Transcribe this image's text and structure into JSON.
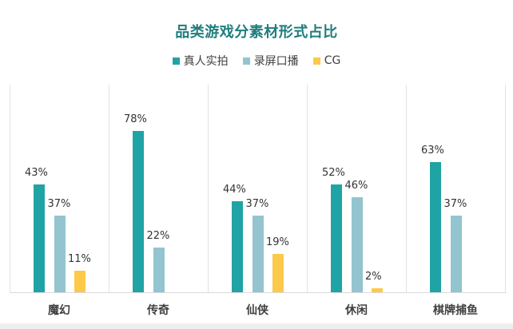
{
  "chart_data": {
    "type": "bar",
    "title": "品类游戏分素材形式占比",
    "categories": [
      "魔幻",
      "传奇",
      "仙侠",
      "休闲",
      "棋牌捕鱼"
    ],
    "series": [
      {
        "name": "真人实拍",
        "color": "#20a3a5",
        "values": [
          43,
          78,
          44,
          52,
          63
        ],
        "labels": [
          "43%",
          "78%",
          "44%",
          "52%",
          "63%"
        ]
      },
      {
        "name": "录屏口播",
        "color": "#93c4cf",
        "values": [
          37,
          22,
          37,
          46,
          37
        ],
        "labels": [
          "37%",
          "22%",
          "37%",
          "46%",
          "37%"
        ]
      },
      {
        "name": "CG",
        "color": "#fcc94a",
        "values": [
          11,
          null,
          19,
          2,
          null
        ],
        "labels": [
          "11%",
          "",
          "19%",
          "2%",
          ""
        ]
      }
    ],
    "xlabel": "",
    "ylabel": "",
    "ylim": [
      0,
      100
    ],
    "grid": false,
    "legend_position": "top",
    "value_unit": "%"
  },
  "layout": {
    "bar_tops": [
      [
        231,
        164,
        252,
        231,
        203
      ],
      [
        270,
        310,
        270,
        247,
        270
      ],
      [
        339,
        null,
        318,
        361,
        null
      ]
    ]
  }
}
